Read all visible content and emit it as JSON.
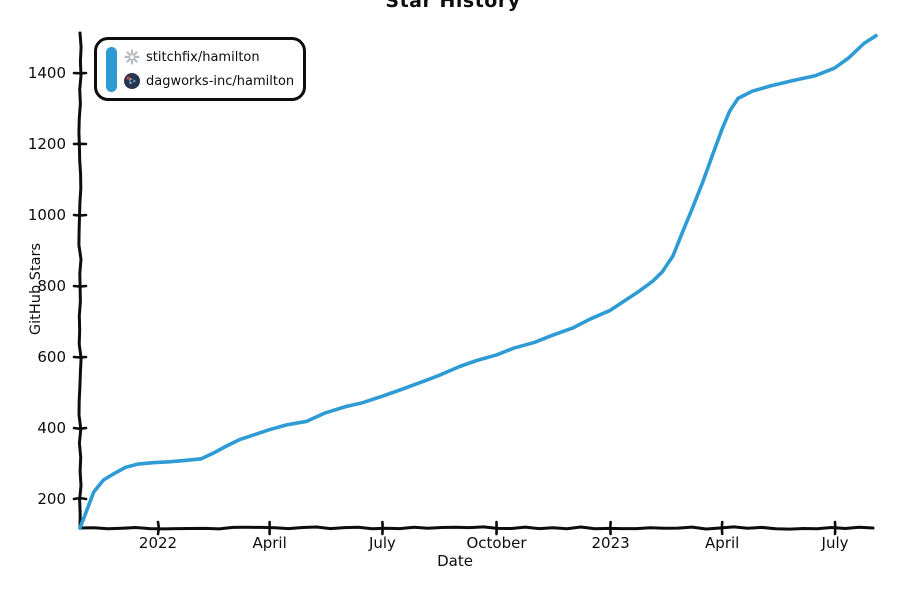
{
  "page": {
    "background_color": "#ffffff",
    "text_color": "#0d0d0d"
  },
  "chart_data": {
    "type": "line",
    "title": "Star History",
    "xlabel": "Date",
    "ylabel": "GitHub Stars",
    "grid": false,
    "line_color": "#2f9bd4",
    "axis_color": "#0d0d0d",
    "legend": {
      "position": "top-left",
      "entries": [
        {
          "label": "stitchfix/hamilton",
          "icon": "stitchfix-avatar"
        },
        {
          "label": "dagworks-inc/hamilton",
          "icon": "dagworks-avatar"
        }
      ]
    },
    "x_ticks": [
      {
        "date": "2022-01-01",
        "label": "2022"
      },
      {
        "date": "2022-04-01",
        "label": "April"
      },
      {
        "date": "2022-07-01",
        "label": "July"
      },
      {
        "date": "2022-10-01",
        "label": "October"
      },
      {
        "date": "2023-01-01",
        "label": "2023"
      },
      {
        "date": "2023-04-01",
        "label": "April"
      },
      {
        "date": "2023-07-01",
        "label": "July"
      }
    ],
    "y_ticks": [
      200,
      400,
      600,
      800,
      1000,
      1200,
      1400
    ],
    "x_range": [
      "2021-10-30",
      "2023-08-05"
    ],
    "ylim": [
      115,
      1510
    ],
    "series": [
      {
        "name": "hamilton (stitchfix/hamilton → dagworks-inc/hamilton)",
        "color": "#2f9bd4",
        "points": [
          [
            "2021-10-30",
            118
          ],
          [
            "2021-11-04",
            165
          ],
          [
            "2021-11-10",
            220
          ],
          [
            "2021-11-18",
            252
          ],
          [
            "2021-11-26",
            272
          ],
          [
            "2021-12-06",
            290
          ],
          [
            "2021-12-16",
            298
          ],
          [
            "2021-12-28",
            302
          ],
          [
            "2022-01-10",
            305
          ],
          [
            "2022-01-24",
            309
          ],
          [
            "2022-02-05",
            315
          ],
          [
            "2022-02-15",
            330
          ],
          [
            "2022-02-25",
            348
          ],
          [
            "2022-03-08",
            367
          ],
          [
            "2022-03-20",
            383
          ],
          [
            "2022-04-01",
            394
          ],
          [
            "2022-04-15",
            407
          ],
          [
            "2022-05-01",
            419
          ],
          [
            "2022-05-15",
            440
          ],
          [
            "2022-06-01",
            459
          ],
          [
            "2022-06-15",
            472
          ],
          [
            "2022-07-01",
            490
          ],
          [
            "2022-07-15",
            508
          ],
          [
            "2022-08-01",
            528
          ],
          [
            "2022-08-15",
            546
          ],
          [
            "2022-09-01",
            572
          ],
          [
            "2022-09-15",
            590
          ],
          [
            "2022-10-01",
            608
          ],
          [
            "2022-10-15",
            625
          ],
          [
            "2022-11-01",
            643
          ],
          [
            "2022-11-15",
            660
          ],
          [
            "2022-12-01",
            682
          ],
          [
            "2022-12-15",
            706
          ],
          [
            "2023-01-01",
            733
          ],
          [
            "2023-01-12",
            758
          ],
          [
            "2023-01-24",
            783
          ],
          [
            "2023-02-04",
            812
          ],
          [
            "2023-02-12",
            840
          ],
          [
            "2023-02-20",
            885
          ],
          [
            "2023-02-28",
            950
          ],
          [
            "2023-03-08",
            1020
          ],
          [
            "2023-03-16",
            1092
          ],
          [
            "2023-03-24",
            1165
          ],
          [
            "2023-04-01",
            1240
          ],
          [
            "2023-04-07",
            1292
          ],
          [
            "2023-04-14",
            1327
          ],
          [
            "2023-04-25",
            1347
          ],
          [
            "2023-05-10",
            1363
          ],
          [
            "2023-05-28",
            1380
          ],
          [
            "2023-06-15",
            1394
          ],
          [
            "2023-07-01",
            1412
          ],
          [
            "2023-07-12",
            1443
          ],
          [
            "2023-07-24",
            1483
          ],
          [
            "2023-08-03",
            1505
          ]
        ]
      }
    ]
  }
}
